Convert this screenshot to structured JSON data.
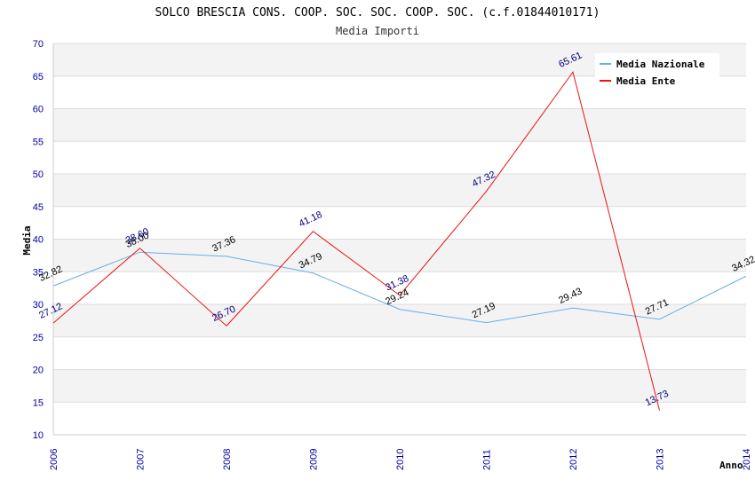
{
  "chart_data": {
    "type": "line",
    "title": "SOLCO BRESCIA CONS. COOP. SOC. SOC. COOP. SOC. (c.f.01844010171)",
    "subtitle": "Media Importi",
    "xlabel": "Anno",
    "ylabel": "Media",
    "x": [
      "2006",
      "2007",
      "2008",
      "2009",
      "2010",
      "2011",
      "2012",
      "2013",
      "2014"
    ],
    "ylim": [
      10,
      70
    ],
    "yticks": [
      10,
      15,
      20,
      25,
      30,
      35,
      40,
      45,
      50,
      55,
      60,
      65,
      70
    ],
    "legend_position": "top-right",
    "series": [
      {
        "name": "Media Nazionale",
        "color": "#6aaee8",
        "label_color": "#000000",
        "values": [
          32.82,
          38.0,
          37.36,
          34.79,
          29.24,
          27.19,
          29.43,
          27.71,
          34.32
        ],
        "labels": [
          "32.82",
          "38.00",
          "37.36",
          "34.79",
          "29.24",
          "27.19",
          "29.43",
          "27.71",
          "34.32"
        ]
      },
      {
        "name": "Media Ente",
        "color": "#ee1111",
        "label_color": "#000080",
        "values": [
          27.12,
          38.6,
          26.7,
          41.18,
          31.38,
          47.32,
          65.61,
          13.73,
          null
        ],
        "labels": [
          "27.12",
          "38.60",
          "26.70",
          "41.18",
          "31.38",
          "47.32",
          "65.61",
          "13.73",
          null
        ]
      }
    ]
  }
}
